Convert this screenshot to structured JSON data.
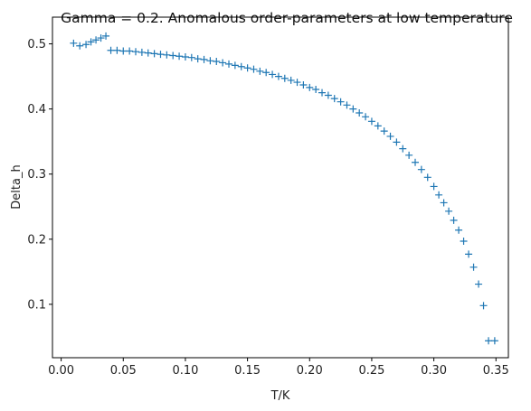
{
  "chart_data": {
    "type": "scatter",
    "title": "Gamma = 0.2. Anomalous order-parameters at low temperature",
    "xlabel": "T/K",
    "ylabel": "Delta_h",
    "xlim": [
      -0.007,
      0.36
    ],
    "ylim": [
      0.018,
      0.541
    ],
    "xticks": [
      0.0,
      0.05,
      0.1,
      0.15,
      0.2,
      0.25,
      0.3,
      0.35
    ],
    "xtick_labels": [
      "0.00",
      "0.05",
      "0.10",
      "0.15",
      "0.20",
      "0.25",
      "0.30",
      "0.35"
    ],
    "yticks": [
      0.1,
      0.2,
      0.3,
      0.4,
      0.5
    ],
    "ytick_labels": [
      "0.1",
      "0.2",
      "0.3",
      "0.4",
      "0.5"
    ],
    "grid": false,
    "marker": "+",
    "color": "#1f77b4",
    "series": [
      {
        "x": [
          0.01,
          0.015,
          0.02,
          0.024,
          0.028,
          0.032,
          0.036,
          0.04,
          0.045,
          0.05,
          0.055,
          0.06,
          0.065,
          0.07,
          0.075,
          0.08,
          0.085,
          0.09,
          0.095,
          0.1,
          0.105,
          0.11,
          0.115,
          0.12,
          0.125,
          0.13,
          0.135,
          0.14,
          0.145,
          0.15,
          0.155,
          0.16,
          0.165,
          0.17,
          0.175,
          0.18,
          0.185,
          0.19,
          0.195,
          0.2,
          0.205,
          0.21,
          0.215,
          0.22,
          0.225,
          0.23,
          0.235,
          0.24,
          0.245,
          0.25,
          0.255,
          0.26,
          0.265,
          0.27,
          0.275,
          0.28,
          0.285,
          0.29,
          0.295,
          0.3,
          0.304,
          0.308,
          0.312,
          0.316,
          0.32,
          0.324,
          0.328,
          0.332,
          0.336,
          0.34,
          0.344,
          0.349
        ],
        "y": [
          0.501,
          0.497,
          0.499,
          0.503,
          0.506,
          0.509,
          0.512,
          0.49,
          0.49,
          0.489,
          0.489,
          0.488,
          0.487,
          0.486,
          0.485,
          0.484,
          0.483,
          0.482,
          0.481,
          0.48,
          0.479,
          0.477,
          0.476,
          0.474,
          0.473,
          0.471,
          0.469,
          0.467,
          0.465,
          0.463,
          0.461,
          0.458,
          0.456,
          0.453,
          0.45,
          0.447,
          0.444,
          0.441,
          0.437,
          0.433,
          0.43,
          0.425,
          0.421,
          0.416,
          0.411,
          0.406,
          0.4,
          0.394,
          0.388,
          0.381,
          0.374,
          0.366,
          0.358,
          0.349,
          0.339,
          0.329,
          0.318,
          0.307,
          0.295,
          0.281,
          0.268,
          0.256,
          0.243,
          0.229,
          0.214,
          0.197,
          0.177,
          0.157,
          0.131,
          0.098,
          0.044,
          0.044
        ]
      }
    ]
  }
}
